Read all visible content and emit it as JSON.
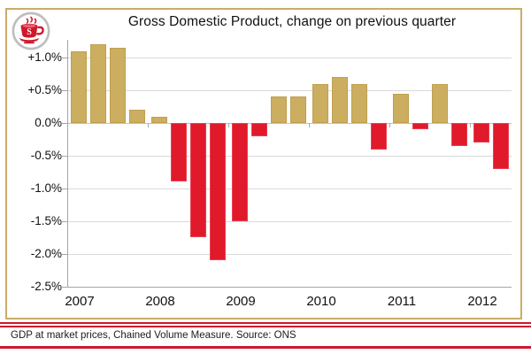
{
  "header": {
    "title": "Gross Domestic Product, change on previous quarter"
  },
  "logo": {
    "letter": "S",
    "description": "red coffee cup badge"
  },
  "chart_data": {
    "type": "bar",
    "title": "Gross Domestic Product, change on previous quarter",
    "ylabel": "",
    "xlabel": "",
    "ylim": [
      -2.5,
      1.3
    ],
    "ytick_step": 0.5,
    "yticks": [
      1.0,
      0.5,
      0.0,
      -0.5,
      -1.0,
      -1.5,
      -2.0,
      -2.5
    ],
    "ytick_labels": [
      "+1.0%",
      "+0.5%",
      "0.0%",
      "-0.5%",
      "-1.0%",
      "-1.5%",
      "-2.0%",
      "-2.5%"
    ],
    "categories": [
      "2007",
      "2008",
      "2009",
      "2010",
      "2011",
      "2012"
    ],
    "grid": "horizontal",
    "legend": "none",
    "points": [
      {
        "quarter": "2007 Q1",
        "value": 1.1
      },
      {
        "quarter": "2007 Q2",
        "value": 1.2
      },
      {
        "quarter": "2007 Q3",
        "value": 1.15
      },
      {
        "quarter": "2007 Q4",
        "value": 0.2
      },
      {
        "quarter": "2008 Q1",
        "value": 0.1
      },
      {
        "quarter": "2008 Q2",
        "value": -0.9
      },
      {
        "quarter": "2008 Q3",
        "value": -1.75
      },
      {
        "quarter": "2008 Q4",
        "value": -2.1
      },
      {
        "quarter": "2009 Q1",
        "value": -1.5
      },
      {
        "quarter": "2009 Q2",
        "value": -0.2
      },
      {
        "quarter": "2009 Q3",
        "value": 0.4
      },
      {
        "quarter": "2009 Q4",
        "value": 0.4
      },
      {
        "quarter": "2010 Q1",
        "value": 0.6
      },
      {
        "quarter": "2010 Q2",
        "value": 0.7
      },
      {
        "quarter": "2010 Q3",
        "value": 0.6
      },
      {
        "quarter": "2010 Q4",
        "value": -0.4
      },
      {
        "quarter": "2011 Q1",
        "value": 0.45
      },
      {
        "quarter": "2011 Q2",
        "value": -0.1
      },
      {
        "quarter": "2011 Q3",
        "value": 0.6
      },
      {
        "quarter": "2011 Q4",
        "value": -0.35
      },
      {
        "quarter": "2012 Q1",
        "value": -0.3
      },
      {
        "quarter": "2012 Q2",
        "value": -0.7
      }
    ],
    "colors": {
      "positive_bar": "#CBAE60",
      "negative_bar": "#E0192B",
      "frame_border": "#C9AD66",
      "rule_red": "#D0182B",
      "gridline": "#D9D9D9"
    }
  },
  "footer": {
    "text": "GDP at market prices, Chained Volume Measure. Source: ONS"
  }
}
